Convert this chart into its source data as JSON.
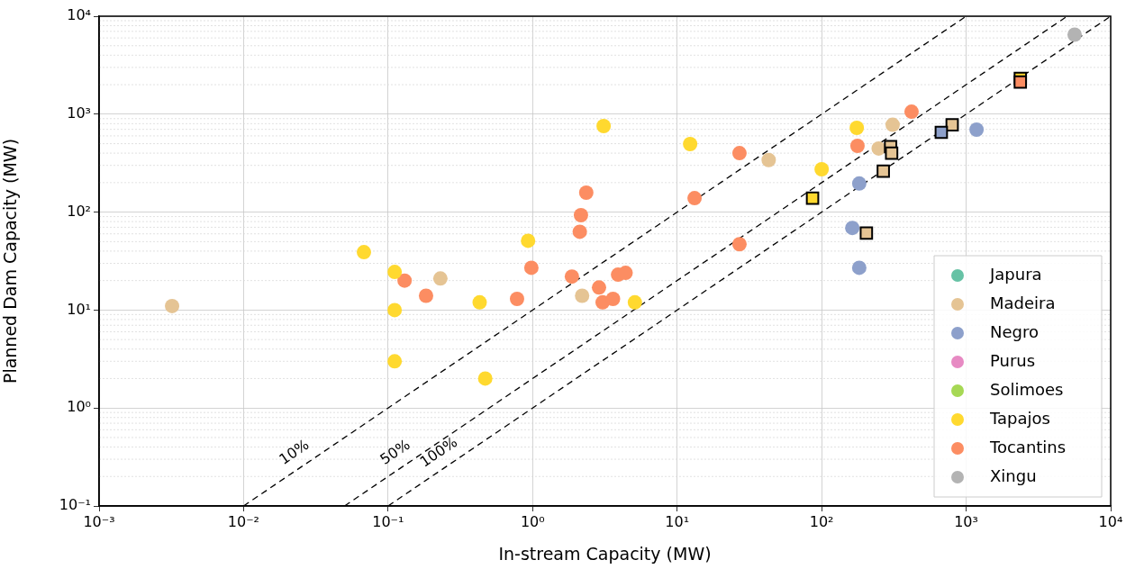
{
  "chart_data": {
    "type": "scatter",
    "xlabel": "In-stream Capacity (MW)",
    "ylabel": "Planned Dam Capacity (MW)",
    "log": "xy",
    "grid": true,
    "legend": "bottom right",
    "marker": "circle",
    "xlim": [
      0.001,
      10000
    ],
    "ylim": [
      0.1,
      10000
    ],
    "xticks": [
      {
        "value": 0.001,
        "label": "10⁻³"
      },
      {
        "value": 0.01,
        "label": "10⁻²"
      },
      {
        "value": 0.1,
        "label": "10⁻¹"
      },
      {
        "value": 1,
        "label": "10⁰"
      },
      {
        "value": 10,
        "label": "10¹"
      },
      {
        "value": 100,
        "label": "10²"
      },
      {
        "value": 1000,
        "label": "10³"
      },
      {
        "value": 10000,
        "label": "10⁴"
      }
    ],
    "yticks": [
      {
        "value": 0.1,
        "label": "10⁻¹"
      },
      {
        "value": 1,
        "label": "10⁰"
      },
      {
        "value": 10,
        "label": "10¹"
      },
      {
        "value": 100,
        "label": "10²"
      },
      {
        "value": 1000,
        "label": "10³"
      },
      {
        "value": 10000,
        "label": "10⁴"
      }
    ],
    "series": [
      {
        "type": "line",
        "name": "10%",
        "color": "#000000",
        "line_style": "dashed",
        "marker": "none",
        "x": [
          0.01,
          1000
        ],
        "values": [
          0.1,
          10000
        ]
      },
      {
        "type": "line",
        "name": "50%",
        "color": "#000000",
        "line_style": "dashed",
        "marker": "none",
        "x": [
          0.05,
          5000
        ],
        "values": [
          0.1,
          10000
        ]
      },
      {
        "type": "line",
        "name": "100%",
        "color": "#000000",
        "line_style": "dashed",
        "marker": "none",
        "x": [
          0.1,
          10000
        ],
        "values": [
          0.1,
          10000
        ]
      },
      {
        "name": "Japura",
        "color": "#66c2a5"
      },
      {
        "name": "Madeira",
        "color": "#e5c494",
        "x": [
          0.0032,
          0.23,
          2.2,
          43,
          310,
          248
        ],
        "values": [
          11,
          21,
          14,
          340,
          780,
          446
        ]
      },
      {
        "name": "Negro",
        "color": "#8da0cb",
        "x": [
          1180,
          182,
          163,
          182
        ],
        "values": [
          695,
          196,
          69,
          27
        ]
      },
      {
        "name": "Purus",
        "color": "#e78ac3"
      },
      {
        "name": "Solimoes",
        "color": "#a6d854"
      },
      {
        "name": "Tapajos",
        "color": "#ffd92f",
        "x": [
          0.068,
          0.111,
          0.111,
          0.111,
          0.43,
          0.47,
          0.93,
          3.1,
          5.1,
          12.3,
          100,
          175
        ],
        "values": [
          39,
          24.5,
          10,
          3,
          12,
          2,
          51,
          756,
          12,
          495,
          274,
          725
        ]
      },
      {
        "name": "Tocantins",
        "color": "#fc8d62",
        "x": [
          0.13,
          0.183,
          0.78,
          0.98,
          1.87,
          2.88,
          3.05,
          3.6,
          3.9,
          4.4,
          2.35,
          2.16,
          2.12,
          13.2,
          27,
          27,
          177,
          419
        ],
        "values": [
          20,
          14,
          13,
          27,
          22,
          17,
          12,
          13,
          23,
          24,
          158,
          93,
          63,
          139,
          47,
          400,
          475,
          1060
        ]
      },
      {
        "name": "Xingu",
        "color": "#b3b3b3",
        "x": [
          5630
        ],
        "values": [
          6480
        ]
      },
      {
        "color": "#e5c494",
        "marker": "square",
        "x": [
          300,
          305,
          267,
          800,
          204
        ],
        "values": [
          465,
          400,
          262,
          780,
          61
        ]
      },
      {
        "color": "#ffd92f",
        "marker": "square",
        "x": [
          86.5,
          2370
        ],
        "values": [
          139,
          2320
        ]
      },
      {
        "color": "#8da0cb",
        "marker": "square",
        "x": [
          673
        ],
        "values": [
          652
        ]
      },
      {
        "color": "#fc8d62",
        "marker": "square",
        "x": [
          2370
        ],
        "values": [
          2130
        ]
      }
    ]
  }
}
